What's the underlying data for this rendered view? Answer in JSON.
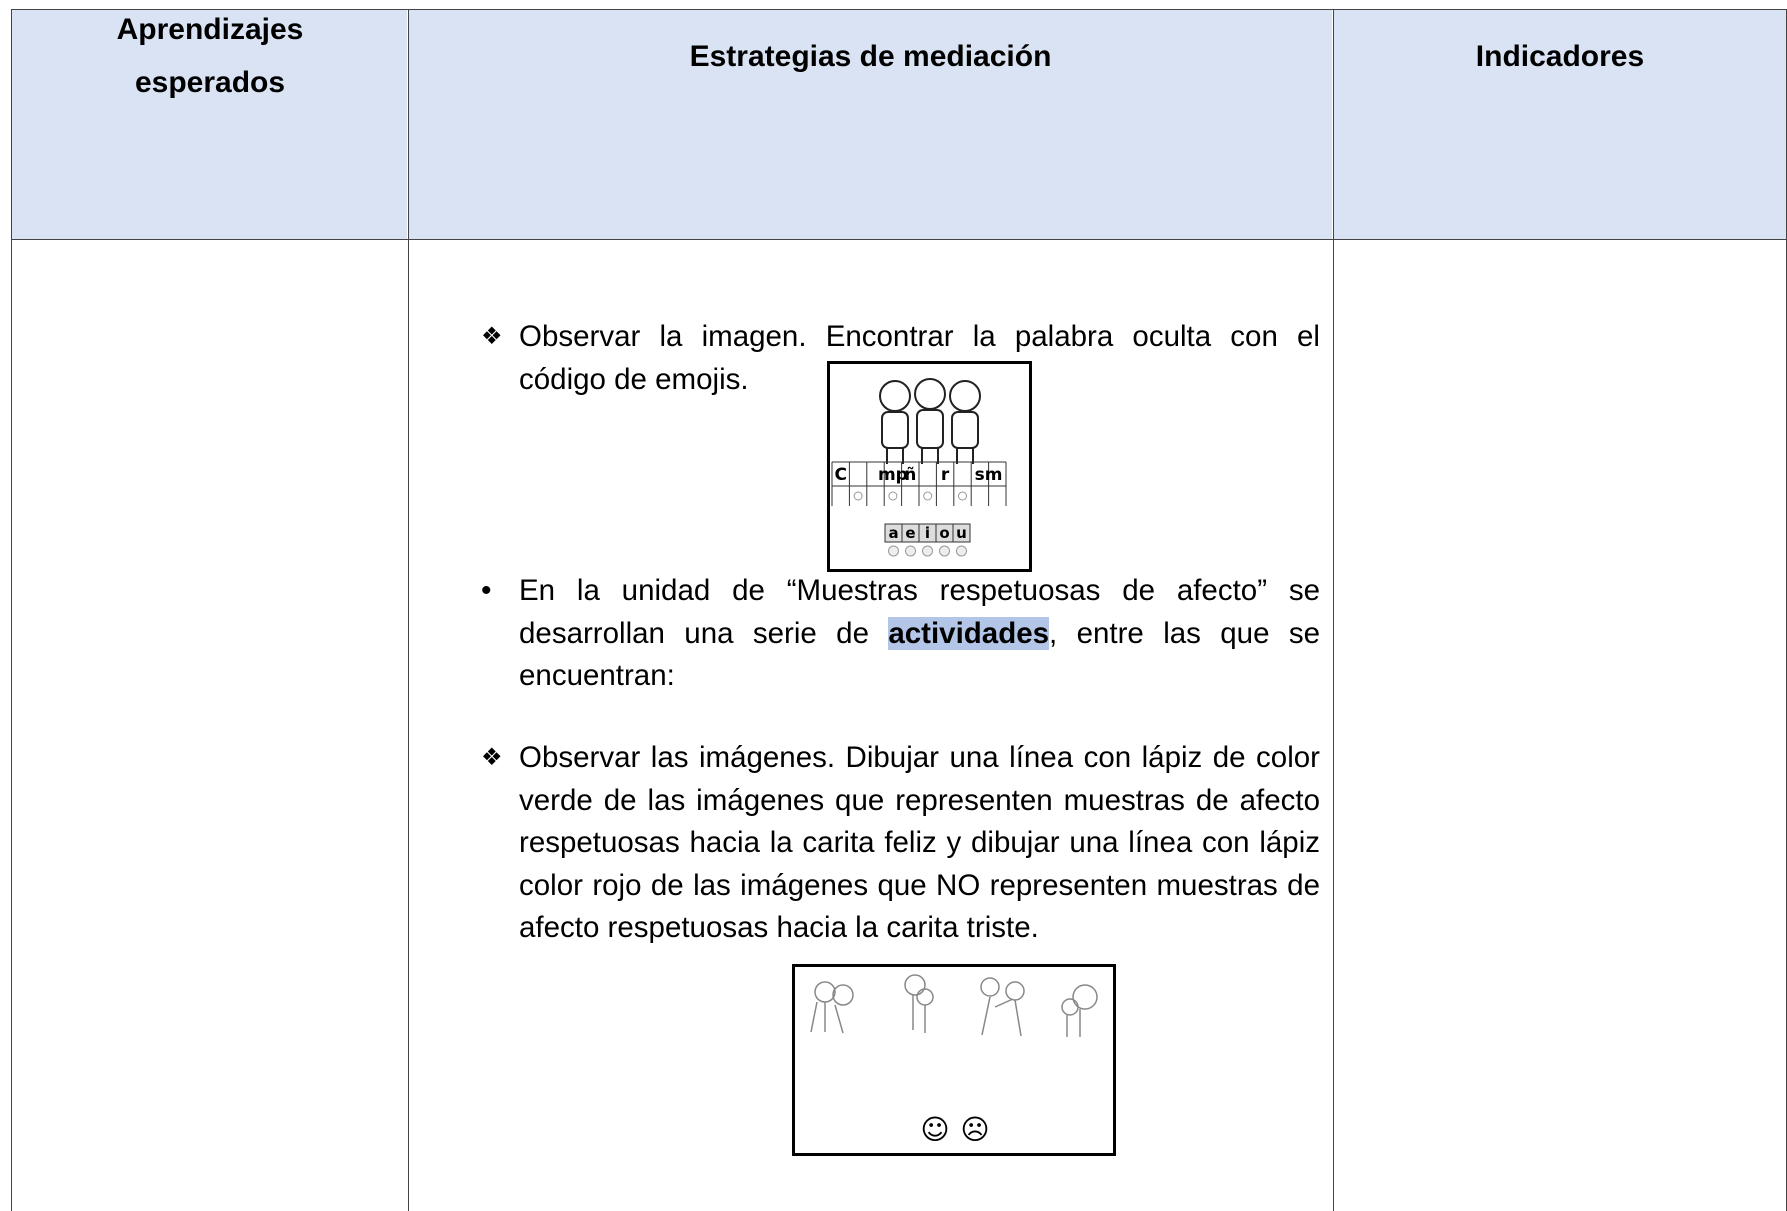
{
  "header": {
    "col1": "Aprendizajes esperados",
    "col2": "Estrategias de mediación",
    "col3": "Indicadores"
  },
  "items": [
    {
      "marker": "❖",
      "text": "Observar la imagen. Encontrar la palabra oculta con el código de emojis."
    },
    {
      "marker": "•",
      "before": "En la unidad de “Muestras respetuosas de afecto” se desarrollan una serie de",
      "bold": "actividades",
      "after": ", entre las que se encuentran:"
    },
    {
      "marker": "❖",
      "text": "Observar las imágenes. Dibujar una línea con lápiz de color verde de las imágenes que representen muestras de afecto respetuosas hacia la carita feliz y dibujar una línea con lápiz color rojo de las imágenes que NO representen muestras de afecto respetuosas hacia la carita triste."
    }
  ],
  "puzzle": {
    "letters": [
      "C",
      "mp",
      "ñ",
      "r",
      "sm"
    ],
    "vowels": [
      "a",
      "e",
      "i",
      "o",
      "u"
    ]
  },
  "matching": {
    "faces": [
      "☺",
      "☹"
    ]
  }
}
